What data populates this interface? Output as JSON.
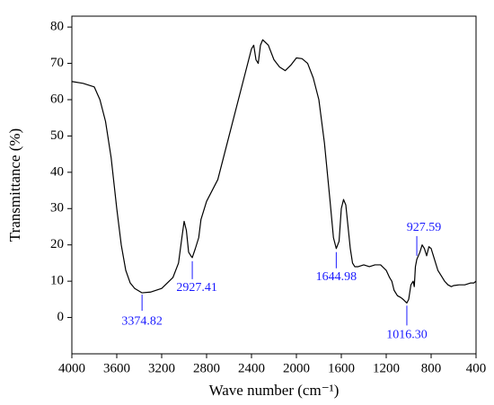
{
  "chart_data": {
    "type": "line",
    "x_label": "Wave number (cm⁻¹)",
    "y_label": "Transmittance (%)",
    "xlim": [
      4000,
      400
    ],
    "ylim": [
      -10,
      83
    ],
    "xticks": [
      4000,
      3600,
      3200,
      2800,
      2400,
      2000,
      1600,
      1200,
      800,
      400
    ],
    "yticks": [
      0,
      10,
      20,
      30,
      40,
      50,
      60,
      70,
      80
    ],
    "x": [
      4000,
      3900,
      3800,
      3750,
      3700,
      3650,
      3600,
      3560,
      3520,
      3480,
      3440,
      3374.82,
      3300,
      3200,
      3100,
      3050,
      3020,
      3000,
      2980,
      2960,
      2940,
      2927.41,
      2900,
      2870,
      2850,
      2800,
      2700,
      2600,
      2500,
      2450,
      2400,
      2380,
      2360,
      2340,
      2320,
      2300,
      2250,
      2200,
      2150,
      2100,
      2050,
      2000,
      1950,
      1900,
      1850,
      1800,
      1750,
      1700,
      1670,
      1644.98,
      1620,
      1600,
      1580,
      1560,
      1540,
      1520,
      1500,
      1480,
      1450,
      1400,
      1350,
      1300,
      1250,
      1200,
      1170,
      1150,
      1130,
      1100,
      1070,
      1050,
      1016.3,
      1000,
      980,
      960,
      950,
      940,
      927.59,
      900,
      880,
      860,
      840,
      820,
      800,
      780,
      760,
      740,
      720,
      700,
      680,
      650,
      620,
      600,
      550,
      500,
      450,
      420,
      400
    ],
    "series": [
      {
        "color": "#000000",
        "values": [
          65,
          64.5,
          63.5,
          60,
          54,
          44,
          30,
          20,
          13,
          9.5,
          8,
          6.8,
          7,
          8,
          11,
          15,
          22,
          26.5,
          24,
          18,
          17,
          16.5,
          19,
          22,
          27,
          32,
          38,
          50,
          62,
          68,
          74,
          75,
          71,
          70,
          75,
          76.5,
          75,
          71,
          69,
          68,
          69.5,
          71.5,
          71.3,
          70,
          66,
          60,
          48,
          32,
          22,
          19,
          21,
          30,
          32.5,
          31,
          25,
          19,
          15,
          14,
          14,
          14.5,
          14,
          14.5,
          14.5,
          13,
          11,
          10,
          7.5,
          6,
          5.5,
          5,
          4,
          5,
          9,
          10,
          8.5,
          14,
          16,
          18,
          20,
          19,
          17,
          19.5,
          19,
          17,
          15,
          13,
          12,
          11,
          10,
          9,
          8.5,
          8.8,
          9,
          9,
          9.5,
          9.5,
          10
        ]
      }
    ],
    "annotations": [
      {
        "label": "3374.82",
        "x": 3374.82,
        "y": 6.8
      },
      {
        "label": "2927.41",
        "x": 2927.41,
        "y": 16.5
      },
      {
        "label": "1644.98",
        "x": 1644.98,
        "y": 19
      },
      {
        "label": "1016.30",
        "x": 1016.3,
        "y": 4
      },
      {
        "label": "927.59",
        "x": 927.59,
        "y": 16
      }
    ],
    "annotation_color": "#1a1aff"
  }
}
